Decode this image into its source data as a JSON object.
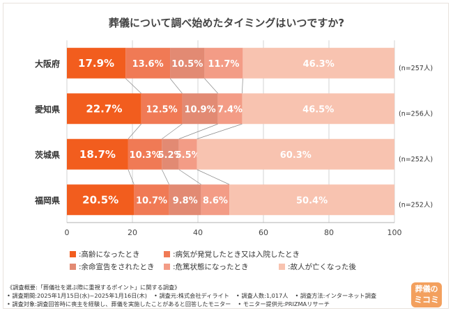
{
  "chart_data": {
    "type": "bar",
    "orientation": "horizontal",
    "stacked": true,
    "title": "葬儀について調べ始めたタイミングはいつですか?",
    "categories": [
      "大阪府",
      "愛知県",
      "茨城県",
      "福岡県"
    ],
    "sample_sizes": [
      "(n=257人)",
      "(n=256人)",
      "(n=252人)",
      "(n=252人)"
    ],
    "series": [
      {
        "name": ":高齢になったとき",
        "color": "#f25d1e",
        "values": [
          17.9,
          22.7,
          18.7,
          20.5
        ]
      },
      {
        "name": ":病気が発覚したとき又は入院したとき",
        "color": "#f07a55",
        "values": [
          13.6,
          12.5,
          10.3,
          10.7
        ]
      },
      {
        "name": ":余命宣告をされたとき",
        "color": "#e28a73",
        "values": [
          10.5,
          10.9,
          5.2,
          9.8
        ]
      },
      {
        "name": ":危篤状態になったとき",
        "color": "#f39c86",
        "values": [
          11.7,
          7.4,
          5.5,
          8.6
        ]
      },
      {
        "name": ":故人が亡くなった後",
        "color": "#f8c3b0",
        "values": [
          46.3,
          46.5,
          60.3,
          50.4
        ]
      }
    ],
    "xlim": [
      0,
      100
    ],
    "xticks": [
      0,
      20,
      40,
      60,
      80,
      100
    ],
    "value_suffix": "%",
    "grid": true,
    "legend_position": "bottom"
  },
  "survey": {
    "lines": [
      [
        "《調査概要:「葬儀社を選ぶ際に重視するポイント」に関する調査》"
      ],
      [
        "• 調査期間:2025年1月15日(水)~2025年1月16日(木)",
        "• 調査元:株式会社ディライト",
        "• 調査人数:1,017人",
        "• 調査方法:インターネット調査"
      ],
      [
        "• 調査対象:調査回答時に喪主を経験し、葬儀を実施したことがあると回答したモニター",
        "• モニター提供元:PRIZMAリサーチ"
      ]
    ]
  },
  "logo": {
    "line1": "葬儀の",
    "line2": "ミコミ"
  }
}
